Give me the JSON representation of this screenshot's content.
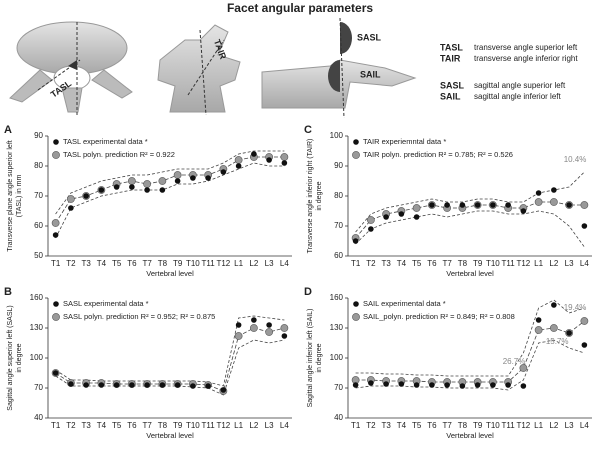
{
  "title": "Facet angular parameters",
  "image_labels": [
    "TASL",
    "TAIR",
    "SASL",
    "SAIL"
  ],
  "abbreviations": [
    {
      "code": "TASL",
      "text": "transverse angle superior left"
    },
    {
      "code": "TAIR",
      "text": "transverse angle inferior right"
    },
    {
      "code": "SASL",
      "text": "sagittal angle superior left"
    },
    {
      "code": "SAIL",
      "text": "sagittal angle inferior left"
    }
  ],
  "chart_data": [
    {
      "type": "line",
      "panel": "A",
      "xlabel": "Vertebral level",
      "ylabel": [
        "Transverse plane angle superior left",
        "(TASL) in mm"
      ],
      "categories": [
        "T1",
        "T2",
        "T3",
        "T4",
        "T5",
        "T6",
        "T7",
        "T8",
        "T9",
        "T10",
        "T11",
        "T12",
        "L1",
        "L2",
        "L3",
        "L4"
      ],
      "ylim": [
        50,
        90
      ],
      "yticks": [
        50,
        60,
        70,
        80,
        90
      ],
      "series": [
        {
          "name": "TASL experimental data *",
          "color": "#111111",
          "values": [
            57,
            66,
            70,
            72,
            73,
            73,
            72,
            72,
            75,
            76,
            76,
            78,
            80,
            84,
            82,
            81
          ]
        },
        {
          "name": "TASL polyn. prediction R² = 0.922",
          "color": "#999999",
          "values": [
            61,
            69,
            70,
            72,
            74,
            75,
            74,
            75,
            77,
            77,
            77,
            79,
            82,
            83,
            83,
            83
          ]
        }
      ],
      "bands": {
        "lower": [
          56,
          66,
          68,
          70,
          71,
          72,
          72,
          72,
          74,
          74,
          75,
          77,
          79,
          81,
          80,
          80
        ],
        "upper": [
          64,
          71,
          73,
          75,
          76,
          77,
          77,
          78,
          79,
          79,
          79,
          81,
          84,
          85,
          85,
          85
        ]
      },
      "annotations": []
    },
    {
      "type": "line",
      "panel": "B",
      "xlabel": "Vertebral level",
      "ylabel": [
        "Sagittal angle superior left (SASL)",
        "in degree"
      ],
      "categories": [
        "T1",
        "T2",
        "T3",
        "T4",
        "T5",
        "T6",
        "T7",
        "T8",
        "T9",
        "T10",
        "T11",
        "T12",
        "L1",
        "L2",
        "L3",
        "L4"
      ],
      "ylim": [
        40,
        160
      ],
      "yticks": [
        40,
        70,
        100,
        130,
        160
      ],
      "series": [
        {
          "name": "SASL experimental data *",
          "color": "#111111",
          "values": [
            85,
            74,
            73,
            73,
            73,
            73,
            73,
            73,
            73,
            72,
            72,
            68,
            133,
            138,
            133,
            122
          ]
        },
        {
          "name": "SASL polyn. prediction R² = 0.952; R² = 0.875",
          "color": "#999999",
          "values": [
            85,
            75,
            75,
            75,
            74,
            74,
            74,
            74,
            74,
            74,
            73,
            67,
            122,
            130,
            126,
            130
          ]
        }
      ],
      "bands": {
        "lower": [
          82,
          72,
          72,
          72,
          72,
          72,
          72,
          72,
          72,
          71,
          70,
          63,
          110,
          118,
          115,
          118
        ],
        "upper": [
          88,
          78,
          78,
          77,
          77,
          77,
          77,
          77,
          77,
          77,
          76,
          72,
          140,
          142,
          140,
          138
        ]
      },
      "annotations": []
    },
    {
      "type": "line",
      "panel": "C",
      "xlabel": "Vertebral level",
      "ylabel": [
        "Transverse angle inferior right (TAIR)",
        "in degree"
      ],
      "categories": [
        "T1",
        "T2",
        "T3",
        "T4",
        "T5",
        "T6",
        "T7",
        "T8",
        "T9",
        "T10",
        "T11",
        "T12",
        "L1",
        "L2",
        "L3",
        "L4"
      ],
      "ylim": [
        60,
        100
      ],
      "yticks": [
        60,
        70,
        80,
        90,
        100
      ],
      "series": [
        {
          "name": "TAIR experiemntal data *",
          "color": "#111111",
          "values": [
            65,
            69,
            73,
            74,
            73,
            77,
            77,
            77,
            77,
            77,
            77,
            75,
            81,
            82,
            77,
            70
          ]
        },
        {
          "name": "TAIR polyn. prediction R² = 0.785; R² = 0.526",
          "color": "#999999",
          "values": [
            66,
            72,
            74,
            75,
            76,
            77,
            76,
            76,
            77,
            77,
            76,
            76,
            78,
            78,
            77,
            77
          ]
        }
      ],
      "bands": {
        "lower": [
          64,
          69,
          71,
          72,
          73,
          74,
          73,
          74,
          75,
          75,
          74,
          74,
          75,
          74,
          70,
          63
        ],
        "upper": [
          68,
          74,
          76,
          77,
          78,
          79,
          78,
          78,
          79,
          79,
          78,
          78,
          81,
          82,
          83,
          88
        ]
      },
      "annotations": [
        "10.4%"
      ]
    },
    {
      "type": "line",
      "panel": "D",
      "xlabel": "Vertebral level",
      "ylabel": [
        "Sagittal angle inferior left (SAIL)",
        "in degree"
      ],
      "categories": [
        "T1",
        "T2",
        "T3",
        "T4",
        "T5",
        "T6",
        "T7",
        "T8",
        "T9",
        "T10",
        "T11",
        "T12",
        "L1",
        "L2",
        "L3",
        "L4"
      ],
      "ylim": [
        40,
        160
      ],
      "yticks": [
        40,
        70,
        100,
        130,
        160
      ],
      "series": [
        {
          "name": "SAIL experimental data *",
          "color": "#111111",
          "values": [
            73,
            75,
            74,
            74,
            73,
            73,
            73,
            72,
            73,
            73,
            73,
            72,
            138,
            153,
            125,
            113
          ]
        },
        {
          "name": "SAIL_polyn. prediction R² = 0.849; R² = 0.808",
          "color": "#999999",
          "values": [
            78,
            78,
            77,
            77,
            77,
            76,
            76,
            76,
            76,
            76,
            76,
            90,
            128,
            130,
            125,
            137
          ]
        }
      ],
      "bands": {
        "lower": [
          70,
          72,
          72,
          72,
          71,
          71,
          70,
          70,
          70,
          70,
          68,
          78,
          115,
          118,
          110,
          105
        ],
        "upper": [
          85,
          85,
          84,
          84,
          83,
          83,
          82,
          82,
          82,
          82,
          82,
          105,
          150,
          158,
          145,
          150
        ]
      },
      "annotations": [
        "26.7%",
        "-15.7%",
        "19.4%"
      ]
    }
  ]
}
